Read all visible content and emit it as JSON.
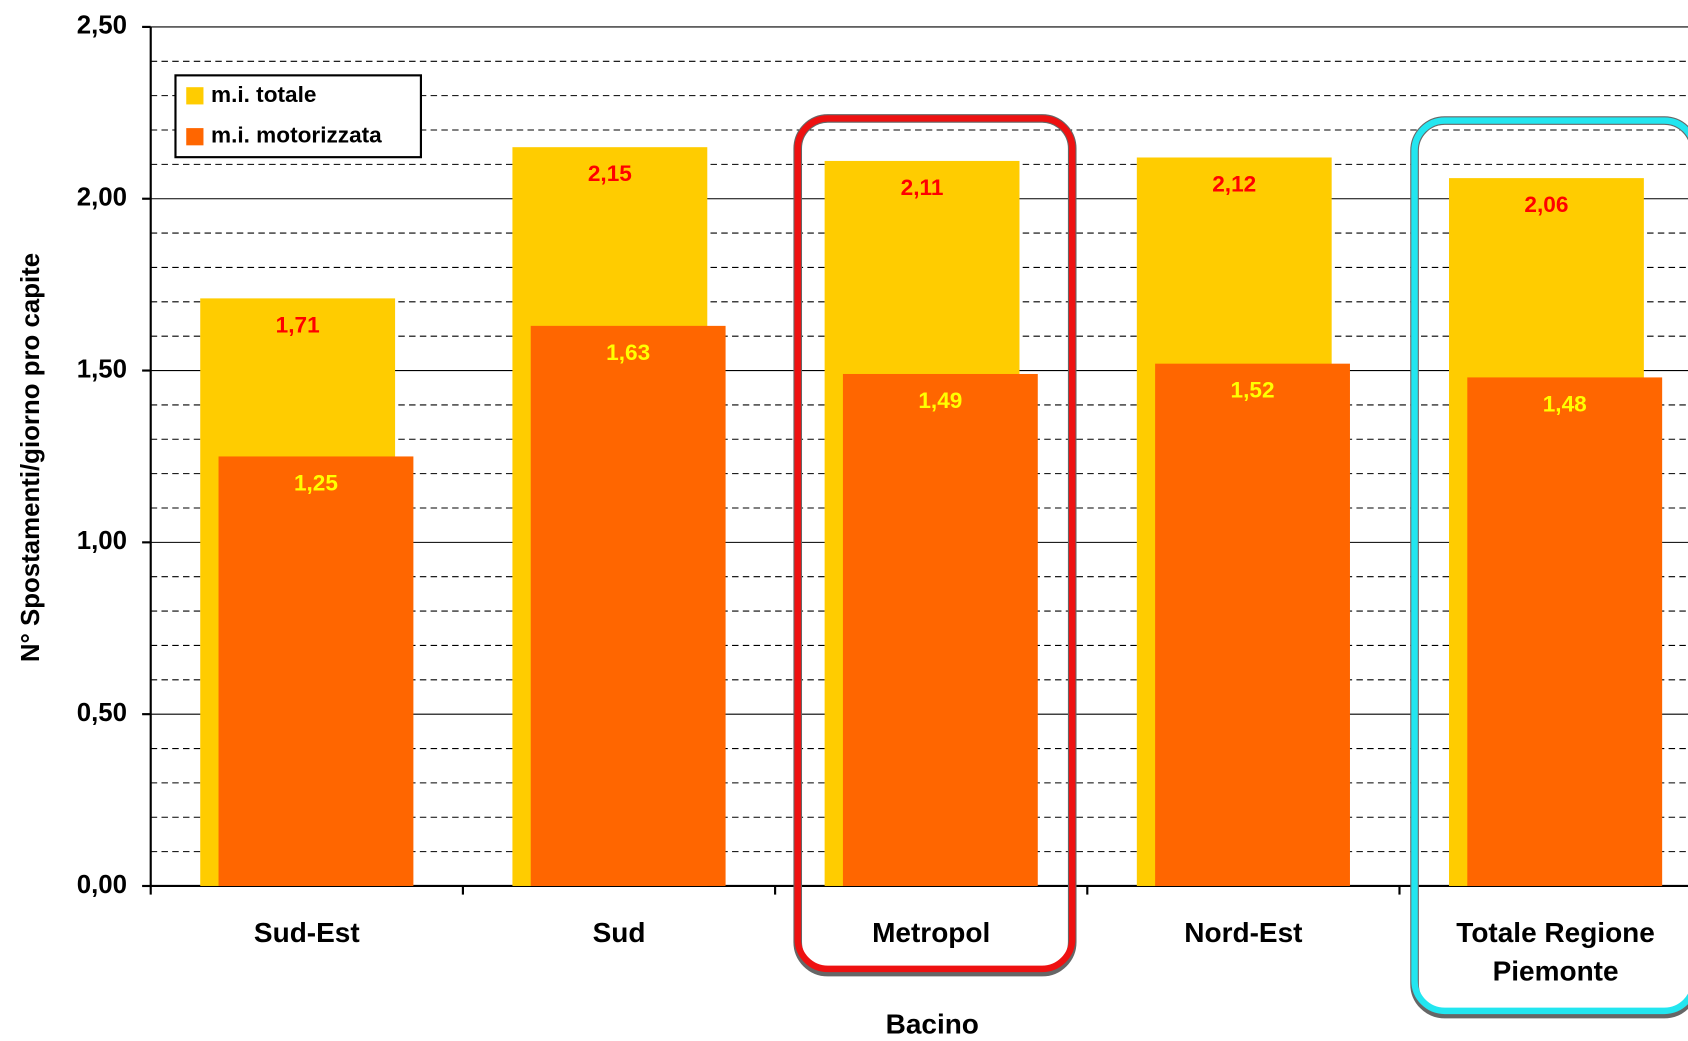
{
  "chart_data": {
    "type": "bar",
    "y_axis_label": "N° Spostamenti/giorno pro capite",
    "x_axis_label": "Bacino",
    "categories": [
      "Sud-Est",
      "Sud",
      "Metropol",
      "Nord-Est",
      "Totale Regione Piemonte"
    ],
    "series": [
      {
        "name": "m.i. totale",
        "color": "#ffcc00",
        "label_color": "#ff0000",
        "values": [
          1.71,
          2.15,
          2.11,
          2.12,
          2.06
        ],
        "value_labels": [
          "1,71",
          "2,15",
          "2,11",
          "2,12",
          "2,06"
        ]
      },
      {
        "name": "m.i. motorizzata",
        "color": "#ff6600",
        "label_color": "#ffff00",
        "values": [
          1.25,
          1.63,
          1.49,
          1.52,
          1.48
        ],
        "value_labels": [
          "1,25",
          "1,63",
          "1,49",
          "1,52",
          "1,48"
        ]
      }
    ],
    "ylim": [
      0,
      2.5
    ],
    "yticks": [
      {
        "value": 0,
        "label": "0,00"
      },
      {
        "value": 0.5,
        "label": "0,50"
      },
      {
        "value": 1,
        "label": "1,00"
      },
      {
        "value": 1.5,
        "label": "1,50"
      },
      {
        "value": 2,
        "label": "2,00"
      },
      {
        "value": 2.5,
        "label": "2,50"
      }
    ],
    "grid": true,
    "legend": "top-left"
  }
}
